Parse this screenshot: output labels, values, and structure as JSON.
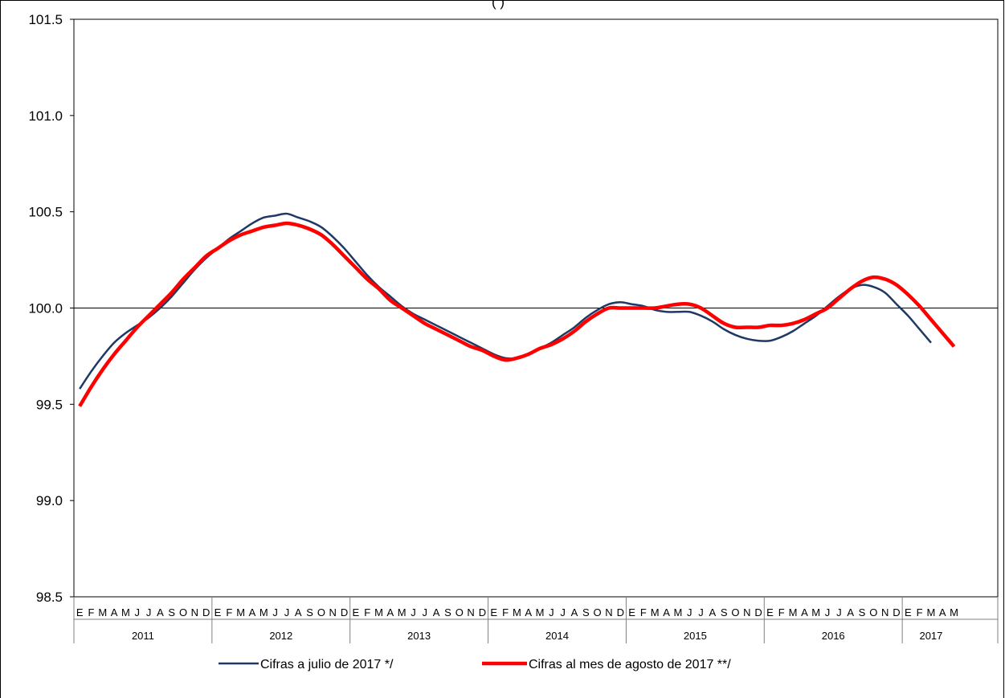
{
  "chart_data": {
    "type": "line",
    "title_fragment": "(       )",
    "xlabel": "",
    "ylabel": "",
    "ylim": [
      98.5,
      101.5
    ],
    "yticks": [
      "101.5",
      "101.0",
      "100.5",
      "100.0",
      "99.5",
      "99.0",
      "98.5"
    ],
    "reference_line": 100.0,
    "grid": false,
    "legend_position": "bottom",
    "month_letters": [
      "E",
      "F",
      "M",
      "A",
      "M",
      "J",
      "J",
      "A",
      "S",
      "O",
      "N",
      "D"
    ],
    "years": [
      "2011",
      "2012",
      "2013",
      "2014",
      "2015",
      "2016",
      "2017"
    ],
    "series": [
      {
        "name": "Cifras a julio de 2017 */",
        "color": "#1f3864",
        "values": [
          99.58,
          99.67,
          99.75,
          99.82,
          99.87,
          99.91,
          99.95,
          100.0,
          100.06,
          100.13,
          100.2,
          100.26,
          100.31,
          100.36,
          100.4,
          100.44,
          100.47,
          100.48,
          100.49,
          100.47,
          100.45,
          100.42,
          100.37,
          100.31,
          100.24,
          100.17,
          100.11,
          100.06,
          100.01,
          99.97,
          99.94,
          99.91,
          99.88,
          99.85,
          99.82,
          99.79,
          99.76,
          99.74,
          99.74,
          99.76,
          99.79,
          99.82,
          99.86,
          99.9,
          99.95,
          99.99,
          100.02,
          100.03,
          100.02,
          100.01,
          99.99,
          99.98,
          99.98,
          99.98,
          99.96,
          99.93,
          99.89,
          99.86,
          99.84,
          99.83,
          99.83,
          99.85,
          99.88,
          99.92,
          99.96,
          100.01,
          100.06,
          100.1,
          100.12,
          100.11,
          100.08,
          100.02,
          99.96,
          99.89,
          99.82
        ]
      },
      {
        "name": "Cifras al mes de agosto de 2017 **/",
        "color": "#ff0000",
        "values": [
          99.49,
          99.59,
          99.68,
          99.76,
          99.83,
          99.9,
          99.96,
          100.02,
          100.08,
          100.15,
          100.21,
          100.27,
          100.31,
          100.35,
          100.38,
          100.4,
          100.42,
          100.43,
          100.44,
          100.43,
          100.41,
          100.38,
          100.33,
          100.27,
          100.21,
          100.15,
          100.1,
          100.04,
          100.0,
          99.96,
          99.92,
          99.89,
          99.86,
          99.83,
          99.8,
          99.78,
          99.75,
          99.73,
          99.74,
          99.76,
          99.79,
          99.81,
          99.84,
          99.88,
          99.93,
          99.97,
          100.0,
          100.0,
          100.0,
          100.0,
          100.0,
          100.01,
          100.02,
          100.02,
          100.0,
          99.96,
          99.92,
          99.9,
          99.9,
          99.9,
          99.91,
          99.91,
          99.92,
          99.94,
          99.97,
          100.0,
          100.05,
          100.1,
          100.14,
          100.16,
          100.15,
          100.12,
          100.07,
          100.01,
          99.94,
          99.87,
          99.8
        ]
      }
    ]
  }
}
